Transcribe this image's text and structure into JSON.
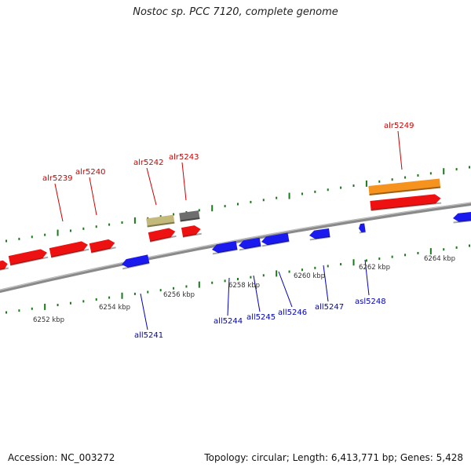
{
  "title": "Nostoc sp. PCC 7120, complete genome",
  "footer": {
    "accession_text": "Accession: NC_003272",
    "summary_text": "Topology: circular; Length: 6,413,771 bp; Genes: 5,428"
  },
  "colors": {
    "forward_gene": "#ee1111",
    "reverse_gene": "#1a1aee",
    "other_feature_orange": "#f5931e",
    "other_feature_khaki": "#c2b97a",
    "other_feature_gray": "#6e6e6e",
    "forward_label": "#cc0000",
    "reverse_label": "#0000bb",
    "tick": "#1a7a1a",
    "backbone": "#8a8a8a"
  },
  "scale_labels": [
    "6252 kbp",
    "6254 kbp",
    "6256 kbp",
    "6258 kbp",
    "6260 kbp",
    "6262 kbp",
    "6264 kbp"
  ],
  "genes": [
    {
      "name": "alr5239",
      "strand": "forward"
    },
    {
      "name": "alr5240",
      "strand": "forward"
    },
    {
      "name": "all5241",
      "strand": "reverse"
    },
    {
      "name": "alr5242",
      "strand": "forward"
    },
    {
      "name": "alr5243",
      "strand": "forward"
    },
    {
      "name": "all5244",
      "strand": "reverse"
    },
    {
      "name": "all5245",
      "strand": "reverse"
    },
    {
      "name": "all5246",
      "strand": "reverse"
    },
    {
      "name": "all5247",
      "strand": "reverse"
    },
    {
      "name": "asl5248",
      "strand": "reverse"
    },
    {
      "name": "alr5249",
      "strand": "forward"
    }
  ]
}
